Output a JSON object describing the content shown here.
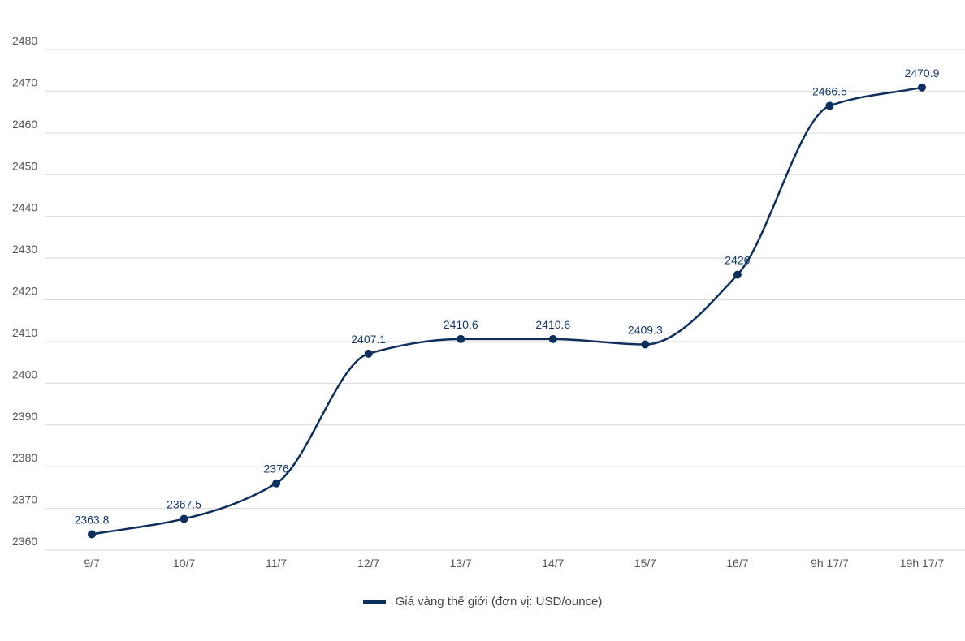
{
  "chart_data": {
    "type": "line",
    "categories": [
      "9/7",
      "10/7",
      "11/7",
      "12/7",
      "13/7",
      "14/7",
      "15/7",
      "16/7",
      "9h 17/7",
      "19h 17/7"
    ],
    "series": [
      {
        "name": "Giá vàng thế giới (đơn vị: USD/ounce)",
        "values": [
          2363.8,
          2367.5,
          2376,
          2407.1,
          2410.6,
          2410.6,
          2409.3,
          2426,
          2466.5,
          2470.9
        ],
        "labels": [
          "2363.8",
          "2367.5",
          "2376",
          "2407.1",
          "2410.6",
          "2410.6",
          "2409.3",
          "2426",
          "2466.5",
          "2470.9"
        ],
        "color": "#0d2f5e"
      }
    ],
    "yticks": [
      2360,
      2370,
      2380,
      2390,
      2400,
      2410,
      2420,
      2430,
      2440,
      2450,
      2460,
      2470,
      2480
    ],
    "ylim": [
      2360,
      2480
    ],
    "grid": true,
    "legend_position": "bottom-center",
    "title": "",
    "xlabel": "",
    "ylabel": ""
  },
  "legend": {
    "label": "Giá vàng thế giới (đơn vị: USD/ounce)"
  }
}
